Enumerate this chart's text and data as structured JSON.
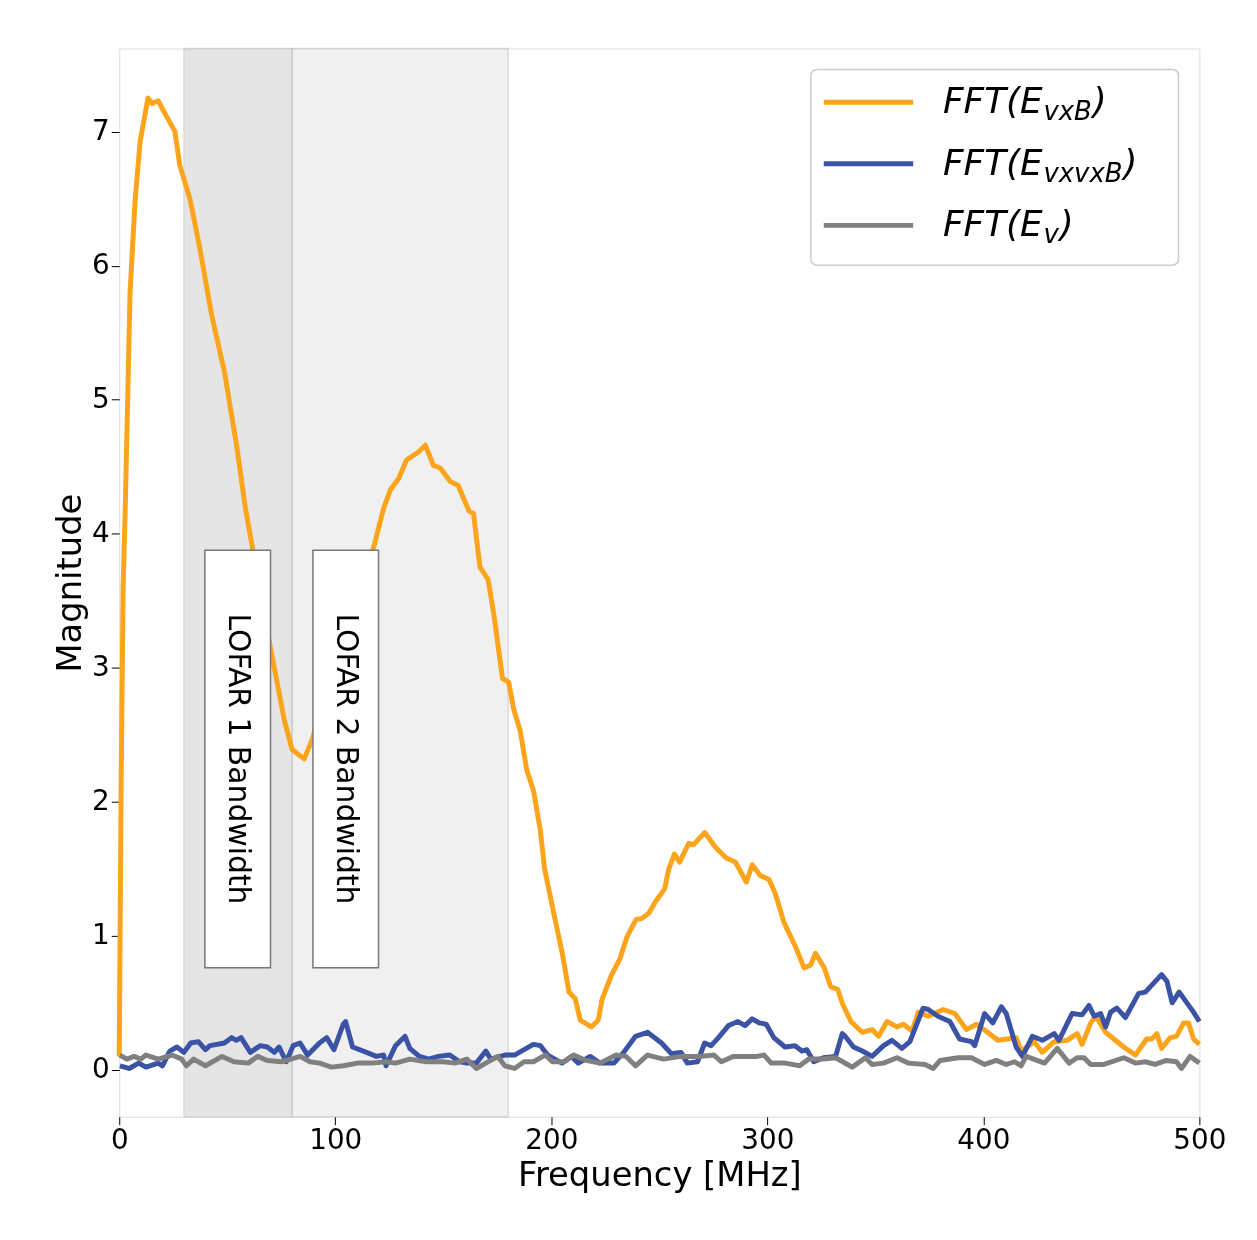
{
  "chart_data": {
    "type": "line",
    "xlabel": "Frequency [MHz]",
    "ylabel": "Magnitude",
    "xlim": [
      0,
      500
    ],
    "ylim": [
      -0.35,
      7.62
    ],
    "xticks": [
      0,
      100,
      200,
      300,
      400,
      500
    ],
    "yticks": [
      0,
      1,
      2,
      3,
      4,
      5,
      6,
      7
    ],
    "grid": false,
    "legend": "top right",
    "line_style": "solid",
    "marker": "none",
    "bands": [
      {
        "axis": "x",
        "from": 30,
        "to": 80,
        "label": "LOFAR 1 Bandwidth",
        "color": "#d0d0d0"
      },
      {
        "axis": "x",
        "from": 80,
        "to": 180,
        "label": "LOFAR 2 Bandwidth",
        "color": "#e4e4e4"
      }
    ],
    "series": [
      {
        "name": "FFT(E$_{vxB}$)",
        "color": "#fba41c",
        "x": [
          0,
          0.9,
          1.8,
          2.8,
          5,
          7.4,
          9.7,
          13.3,
          15.2,
          18,
          21,
          25.8,
          28,
          32.7,
          37.3,
          42.8,
          48.8,
          54.7,
          58.4,
          70.4,
          73.1,
          76.4,
          80,
          85.6,
          89.2,
          117.8,
          122.4,
          125.6,
          129.3,
          133,
          138.5,
          141.7,
          145.4,
          148.6,
          153.2,
          156.9,
          161.9,
          164,
          167,
          170.7,
          173.4,
          177.4,
          180.3,
          182.6,
          185.6,
          188.6,
          191.8,
          194.9,
          196.9,
          201,
          205.2,
          208.2,
          211.1,
          213.4,
          218.5,
          221.7,
          223.6,
          227.7,
          231.8,
          235,
          239.2,
          242,
          245.2,
          248.4,
          252.5,
          254.4,
          257,
          259.4,
          263.6,
          265.9,
          271,
          276,
          281,
          285.2,
          290.3,
          293,
          296.7,
          300.8,
          303.8,
          307.7,
          313,
          317,
          320,
          322.3,
          326.4,
          329.3,
          332.6,
          334.6,
          338.7,
          343.9,
          348.5,
          351.5,
          355.4,
          360,
          363,
          367,
          369.9,
          374.5,
          381.4,
          386.8,
          392.2,
          396.8,
          402,
          406.7,
          411.2,
          415.2,
          417.5,
          423.6,
          427.3,
          432.8,
          438.8,
          443.4,
          445.7,
          449.7,
          452,
          456.6,
          460.4,
          465,
          470.4,
          475.6,
          477.9,
          480.3,
          482.5,
          486.5,
          489.4,
          492.7,
          495,
          497.3,
          500
        ],
        "values": [
          0.1,
          2.17,
          3.6,
          4.2,
          5.8,
          6.5,
          6.93,
          7.25,
          7.21,
          7.23,
          7.14,
          7.0,
          6.75,
          6.5,
          6.13,
          5.63,
          5.2,
          4.62,
          4.19,
          3.11,
          2.89,
          2.61,
          2.39,
          2.32,
          2.46,
          3.9,
          4.19,
          4.33,
          4.41,
          4.55,
          4.61,
          4.66,
          4.51,
          4.49,
          4.39,
          4.36,
          4.17,
          4.15,
          3.75,
          3.66,
          3.4,
          2.92,
          2.89,
          2.69,
          2.53,
          2.24,
          2.08,
          1.79,
          1.5,
          1.18,
          0.86,
          0.58,
          0.53,
          0.37,
          0.32,
          0.37,
          0.53,
          0.7,
          0.83,
          0.99,
          1.12,
          1.13,
          1.17,
          1.26,
          1.35,
          1.5,
          1.61,
          1.55,
          1.69,
          1.68,
          1.77,
          1.66,
          1.58,
          1.55,
          1.4,
          1.53,
          1.45,
          1.42,
          1.31,
          1.1,
          0.92,
          0.76,
          0.78,
          0.87,
          0.76,
          0.62,
          0.6,
          0.5,
          0.36,
          0.28,
          0.3,
          0.25,
          0.36,
          0.32,
          0.34,
          0.29,
          0.43,
          0.4,
          0.45,
          0.42,
          0.3,
          0.34,
          0.28,
          0.22,
          0.23,
          0.24,
          0.14,
          0.21,
          0.13,
          0.21,
          0.22,
          0.27,
          0.19,
          0.35,
          0.4,
          0.28,
          0.23,
          0.17,
          0.11,
          0.23,
          0.23,
          0.27,
          0.16,
          0.24,
          0.25,
          0.35,
          0.35,
          0.23,
          0.19
        ]
      },
      {
        "name": "FFT(E$_{vxvxB}$)",
        "color": "#3a53a4",
        "x": [
          0.3,
          4.6,
          9,
          12.4,
          18,
          20,
          23.4,
          26.7,
          29.9,
          33.1,
          36.6,
          39.9,
          42,
          48.7,
          52,
          54.2,
          56.4,
          60.7,
          65.2,
          68.5,
          71.8,
          74,
          77.3,
          80.5,
          83.7,
          87.2,
          92.7,
          96,
          99.4,
          103.7,
          104.8,
          108,
          114.5,
          119,
          122.4,
          123.5,
          127.9,
          132.3,
          134.5,
          138.9,
          143.3,
          147.7,
          153,
          157.6,
          160.9,
          165.3,
          169.7,
          172,
          178.5,
          183,
          187.4,
          191.7,
          195,
          198.3,
          205,
          209.3,
          212.5,
          218,
          222.5,
          229,
          233.5,
          239,
          244.5,
          251,
          255.6,
          260,
          263,
          267.7,
          271,
          274,
          277.4,
          282,
          286.4,
          289.7,
          293,
          296.2,
          299.5,
          303,
          308.2,
          312.8,
          316,
          318.3,
          321.5,
          326,
          331.6,
          334.7,
          336,
          339.9,
          344,
          348.5,
          353.8,
          357.7,
          362.3,
          366,
          372.1,
          374.5,
          379,
          384.5,
          389,
          394.5,
          396,
          400.6,
          404.4,
          408.3,
          410.6,
          415.2,
          418.1,
          422.7,
          427.3,
          432.8,
          435,
          441.1,
          445.7,
          448.9,
          451.3,
          454.3,
          456.6,
          458.9,
          461.8,
          465.8,
          471.9,
          475,
          482.5,
          485,
          487.4,
          490.6,
          492,
          497.3,
          500
        ],
        "values": [
          0.03,
          0.01,
          0.05,
          0.02,
          0.05,
          0.03,
          0.14,
          0.17,
          0.13,
          0.2,
          0.21,
          0.15,
          0.18,
          0.2,
          0.24,
          0.22,
          0.24,
          0.13,
          0.18,
          0.17,
          0.13,
          0.17,
          0.06,
          0.18,
          0.2,
          0.11,
          0.2,
          0.24,
          0.15,
          0.34,
          0.36,
          0.17,
          0.13,
          0.1,
          0.11,
          0.03,
          0.18,
          0.25,
          0.16,
          0.1,
          0.08,
          0.1,
          0.11,
          0.06,
          0.05,
          0.05,
          0.14,
          0.08,
          0.11,
          0.11,
          0.15,
          0.19,
          0.18,
          0.11,
          0.05,
          0.1,
          0.05,
          0.1,
          0.05,
          0.05,
          0.13,
          0.25,
          0.28,
          0.2,
          0.12,
          0.13,
          0.05,
          0.06,
          0.2,
          0.18,
          0.24,
          0.33,
          0.36,
          0.33,
          0.38,
          0.35,
          0.34,
          0.24,
          0.17,
          0.18,
          0.14,
          0.15,
          0.06,
          0.09,
          0.1,
          0.27,
          0.25,
          0.17,
          0.14,
          0.1,
          0.18,
          0.22,
          0.16,
          0.21,
          0.46,
          0.45,
          0.4,
          0.36,
          0.23,
          0.21,
          0.18,
          0.42,
          0.35,
          0.47,
          0.42,
          0.17,
          0.1,
          0.25,
          0.22,
          0.27,
          0.22,
          0.42,
          0.41,
          0.48,
          0.4,
          0.42,
          0.32,
          0.43,
          0.46,
          0.39,
          0.57,
          0.58,
          0.71,
          0.66,
          0.5,
          0.58,
          0.55,
          0.43,
          0.36
        ]
      },
      {
        "name": "FFT(E$_{v}$)",
        "color": "#808080",
        "x": [
          0.3,
          3.5,
          6.9,
          10,
          12.4,
          18,
          24.4,
          28.9,
          31.1,
          34.4,
          39.9,
          47.6,
          53.1,
          59.7,
          64.1,
          68.5,
          75,
          79.5,
          83.7,
          88.3,
          92.7,
          98.2,
          103.7,
          110.3,
          116.8,
          123.5,
          127.9,
          134.5,
          142.1,
          150,
          155.5,
          160.9,
          165.3,
          169.7,
          175.2,
          178.5,
          183,
          187.4,
          191.7,
          197.2,
          200.5,
          206,
          210.4,
          216,
          222.5,
          230,
          234.6,
          239,
          244.5,
          252,
          260,
          268.6,
          275.3,
          278.7,
          284.2,
          289.7,
          295.2,
          298.5,
          301.8,
          308.2,
          315,
          319.2,
          326,
          331.6,
          339.3,
          345.4,
          348.5,
          353.8,
          360,
          365.2,
          373,
          376.8,
          380,
          388.3,
          394.5,
          400.6,
          406,
          410.6,
          414.4,
          417.5,
          419.8,
          428.3,
          434.2,
          439.7,
          443.4,
          446.6,
          449.7,
          455.8,
          465,
          470.4,
          475,
          479.5,
          484.7,
          489.4,
          491.7,
          495.7,
          500
        ],
        "values": [
          0.11,
          0.08,
          0.1,
          0.08,
          0.11,
          0.08,
          0.11,
          0.08,
          0.03,
          0.08,
          0.03,
          0.1,
          0.06,
          0.05,
          0.1,
          0.07,
          0.06,
          0.08,
          0.1,
          0.06,
          0.05,
          0.02,
          0.03,
          0.05,
          0.05,
          0.06,
          0.05,
          0.08,
          0.06,
          0.06,
          0.05,
          0.08,
          0.01,
          0.05,
          0.1,
          0.03,
          0.01,
          0.06,
          0.06,
          0.11,
          0.06,
          0.06,
          0.11,
          0.07,
          0.05,
          0.11,
          0.1,
          0.03,
          0.11,
          0.08,
          0.1,
          0.1,
          0.11,
          0.06,
          0.1,
          0.1,
          0.1,
          0.11,
          0.05,
          0.05,
          0.03,
          0.08,
          0.08,
          0.09,
          0.02,
          0.09,
          0.04,
          0.05,
          0.09,
          0.05,
          0.04,
          0.01,
          0.07,
          0.09,
          0.09,
          0.04,
          0.07,
          0.04,
          0.06,
          0.03,
          0.1,
          0.05,
          0.16,
          0.05,
          0.09,
          0.09,
          0.04,
          0.04,
          0.09,
          0.05,
          0.06,
          0.04,
          0.07,
          0.06,
          0.01,
          0.1,
          0.05
        ]
      }
    ]
  }
}
